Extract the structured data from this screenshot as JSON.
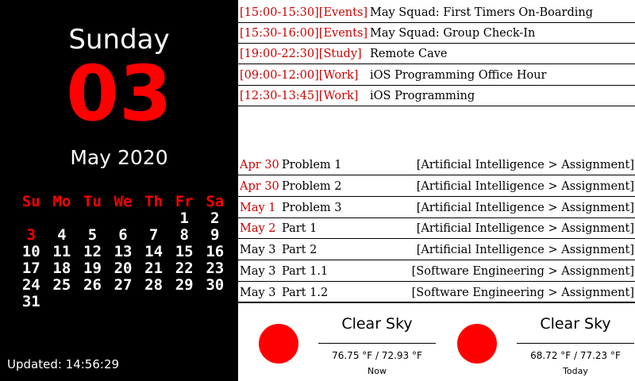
{
  "date": {
    "weekday": "Sunday",
    "day": "03",
    "month_year": "May 2020"
  },
  "calendar": {
    "headers": [
      "Su",
      "Mo",
      "Tu",
      "We",
      "Th",
      "Fr",
      "Sa"
    ],
    "weeks": [
      [
        "",
        "",
        "",
        "",
        "",
        "1",
        "2"
      ],
      [
        "3",
        "4",
        "5",
        "6",
        "7",
        "8",
        "9"
      ],
      [
        "10",
        "11",
        "12",
        "13",
        "14",
        "15",
        "16"
      ],
      [
        "17",
        "18",
        "19",
        "20",
        "21",
        "22",
        "23"
      ],
      [
        "24",
        "25",
        "26",
        "27",
        "28",
        "29",
        "30"
      ],
      [
        "31",
        "",
        "",
        "",
        "",
        "",
        ""
      ]
    ],
    "today": "3",
    "highlight_color": "#ff0000"
  },
  "updated": "Updated: 14:56:29",
  "events": [
    {
      "time": "[15:00-15:30][Events]",
      "title": "May Squad: First Timers On-Boarding"
    },
    {
      "time": "[15:30-16:00][Events]",
      "title": "May Squad: Group Check-In"
    },
    {
      "time": "[19:00-22:30][Study]",
      "title": "Remote Cave"
    },
    {
      "time": "[09:00-12:00][Work]",
      "title": "iOS Programming Office Hour"
    },
    {
      "time": "[12:30-13:45][Work]",
      "title": "iOS Programming"
    }
  ],
  "tasks": [
    {
      "date": "Apr 30",
      "name": "Problem 1",
      "course": "[Artificial Intelligence > Assignment]",
      "overdue": true
    },
    {
      "date": "Apr 30",
      "name": "Problem 2",
      "course": "[Artificial Intelligence > Assignment]",
      "overdue": true
    },
    {
      "date": "May 1",
      "name": "Problem 3",
      "course": "[Artificial Intelligence > Assignment]",
      "overdue": true
    },
    {
      "date": "May 2",
      "name": "Part 1",
      "course": "[Artificial Intelligence > Assignment]",
      "overdue": true
    },
    {
      "date": "May 3",
      "name": "Part 2",
      "course": "[Artificial Intelligence > Assignment]",
      "overdue": false
    },
    {
      "date": "May 3",
      "name": "Part 1.1",
      "course": "[Software Engineering > Assignment]",
      "overdue": false
    },
    {
      "date": "May 3",
      "name": "Part 1.2",
      "course": "[Software Engineering > Assignment]",
      "overdue": false
    }
  ],
  "weather": [
    {
      "icon": "sun-icon",
      "condition": "Clear Sky",
      "temps": "76.75 °F / 72.93 °F",
      "label": "Now"
    },
    {
      "icon": "sun-icon",
      "condition": "Clear Sky",
      "temps": "68.72 °F / 77.23 °F",
      "label": "Today"
    }
  ]
}
